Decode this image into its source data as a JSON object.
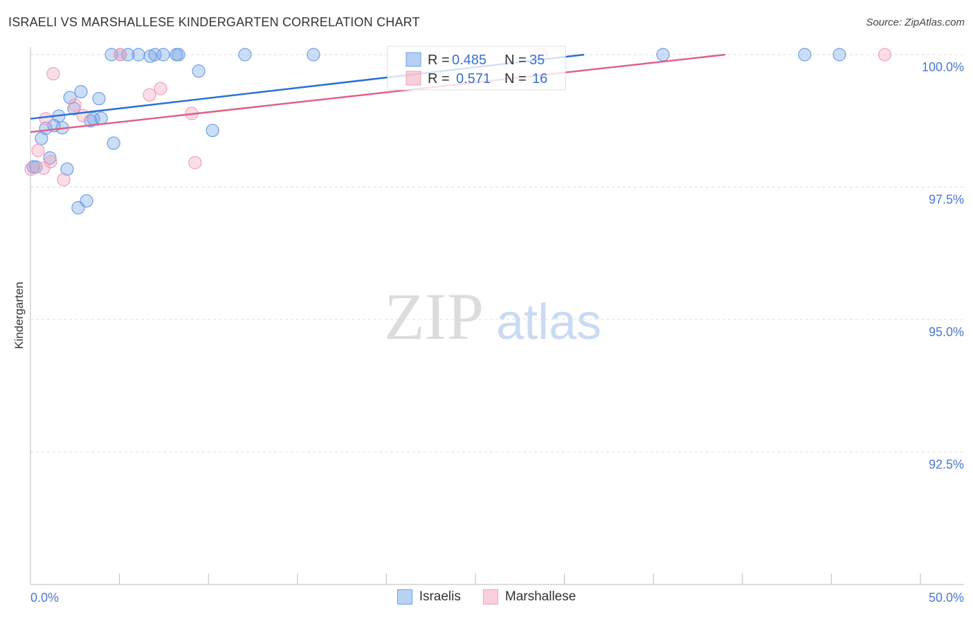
{
  "chart_data": {
    "type": "scatter",
    "title": "ISRAELI VS MARSHALLESE KINDERGARTEN CORRELATION CHART",
    "source": "Source: ZipAtlas.com",
    "xlabel": "",
    "ylabel": "Kindergarten",
    "xlim": [
      0,
      50
    ],
    "ylim": [
      90,
      100
    ],
    "x_tick_labels": [
      "0.0%",
      "50.0%"
    ],
    "y_ticks": [
      100,
      97.5,
      95,
      92.5
    ],
    "y_tick_labels": [
      "100.0%",
      "97.5%",
      "95.0%",
      "92.5%"
    ],
    "grid": true,
    "legend_placement": "top-center",
    "watermark": "ZIPatlas",
    "series": [
      {
        "name": "Israelis",
        "color": "#6d9fe6",
        "line_color": "#2a6fd6",
        "R": "0.485",
        "N": "35",
        "trend": {
          "x0": 0,
          "y0": 98.79,
          "slope": 0.0389
        },
        "points": [
          [
            4.55,
            100
          ],
          [
            5.05,
            100
          ],
          [
            5.48,
            100
          ],
          [
            6.07,
            100
          ],
          [
            6.73,
            99.97
          ],
          [
            7.0,
            100
          ],
          [
            7.46,
            100
          ],
          [
            8.2,
            100
          ],
          [
            8.32,
            100
          ],
          [
            12.05,
            100
          ],
          [
            15.9,
            100
          ],
          [
            35.54,
            100
          ],
          [
            43.5,
            100
          ],
          [
            45.45,
            100
          ],
          [
            9.45,
            99.69
          ],
          [
            2.22,
            99.19
          ],
          [
            2.84,
            99.3
          ],
          [
            3.85,
            99.17
          ],
          [
            2.45,
            98.98
          ],
          [
            1.59,
            98.84
          ],
          [
            1.32,
            98.66
          ],
          [
            0.86,
            98.61
          ],
          [
            1.79,
            98.62
          ],
          [
            3.54,
            98.79
          ],
          [
            3.38,
            98.75
          ],
          [
            3.97,
            98.8
          ],
          [
            0.62,
            98.42
          ],
          [
            4.67,
            98.33
          ],
          [
            10.23,
            98.57
          ],
          [
            1.09,
            98.05
          ],
          [
            2.06,
            97.84
          ],
          [
            0.16,
            97.88
          ],
          [
            0.31,
            97.88
          ],
          [
            3.15,
            97.24
          ],
          [
            2.68,
            97.11
          ]
        ]
      },
      {
        "name": "Marshallese",
        "color": "#f0a0b8",
        "line_color": "#e0608a",
        "R": "0.571",
        "N": "16",
        "trend": {
          "x0": 0,
          "y0": 98.54,
          "slope": 0.0374
        },
        "points": [
          [
            5.05,
            100
          ],
          [
            28.7,
            100
          ],
          [
            48.0,
            100
          ],
          [
            1.28,
            99.64
          ],
          [
            6.69,
            99.24
          ],
          [
            7.31,
            99.36
          ],
          [
            2.49,
            99.05
          ],
          [
            0.86,
            98.79
          ],
          [
            2.95,
            98.85
          ],
          [
            9.06,
            98.89
          ],
          [
            0.43,
            98.19
          ],
          [
            1.13,
            97.98
          ],
          [
            0.74,
            97.86
          ],
          [
            1.87,
            97.64
          ],
          [
            9.25,
            97.96
          ],
          [
            0.04,
            97.84
          ]
        ]
      }
    ]
  },
  "legend": {
    "r_label": "R =",
    "n_label": "N ="
  }
}
